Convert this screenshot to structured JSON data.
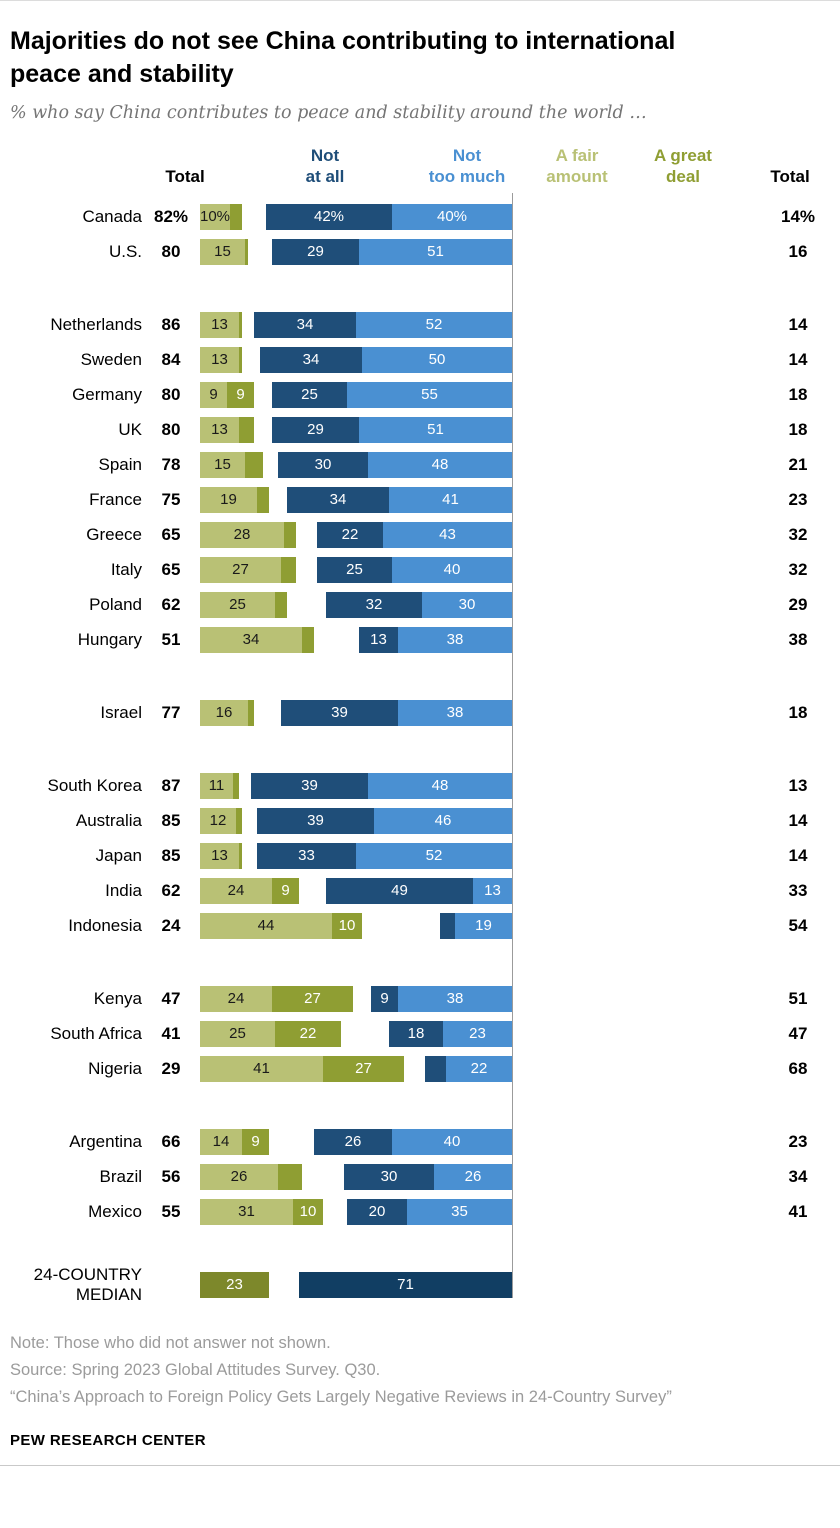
{
  "header": {
    "title": "Majorities do not see China contributing to international peace and stability",
    "subtitle": "% who say China contributes to peace and stability around the world …"
  },
  "chart_data": {
    "type": "diverging-stacked-bar",
    "legend": [
      "Not at all",
      "Not too much",
      "A fair amount",
      "A great deal"
    ],
    "columns": {
      "total_left": "Total",
      "not_at_all": "Not\nat all",
      "not_too_much": "Not\ntoo much",
      "fair_amount": "A fair\namount",
      "great_deal": "A great\ndeal",
      "total_right": "Total"
    },
    "colors": {
      "not_at_all": "#1f4e79",
      "not_too_much": "#4a90d2",
      "fair_amount": "#b9c175",
      "great_deal": "#8f9e33",
      "median_negative": "#113e63",
      "median_positive": "#7d882b",
      "center_line": "#9b9b9b"
    },
    "groups": [
      {
        "rows": [
          {
            "country": "Canada",
            "total_left": "82%",
            "na": {
              "v": 42,
              "t": "42%"
            },
            "nm": {
              "v": 40,
              "t": "40%"
            },
            "fa": {
              "v": 10,
              "t": "10%"
            },
            "gr": {
              "v": 4,
              "t": ""
            },
            "total_right": "14%"
          },
          {
            "country": "U.S.",
            "total_left": "80",
            "na": {
              "v": 29,
              "t": "29"
            },
            "nm": {
              "v": 51,
              "t": "51"
            },
            "fa": {
              "v": 15,
              "t": "15"
            },
            "gr": {
              "v": 1,
              "t": ""
            },
            "total_right": "16"
          }
        ]
      },
      {
        "rows": [
          {
            "country": "Netherlands",
            "total_left": "86",
            "na": {
              "v": 34,
              "t": "34"
            },
            "nm": {
              "v": 52,
              "t": "52"
            },
            "fa": {
              "v": 13,
              "t": "13"
            },
            "gr": {
              "v": 1,
              "t": ""
            },
            "total_right": "14"
          },
          {
            "country": "Sweden",
            "total_left": "84",
            "na": {
              "v": 34,
              "t": "34"
            },
            "nm": {
              "v": 50,
              "t": "50"
            },
            "fa": {
              "v": 13,
              "t": "13"
            },
            "gr": {
              "v": 1,
              "t": ""
            },
            "total_right": "14"
          },
          {
            "country": "Germany",
            "total_left": "80",
            "na": {
              "v": 25,
              "t": "25"
            },
            "nm": {
              "v": 55,
              "t": "55"
            },
            "fa": {
              "v": 9,
              "t": "9"
            },
            "gr": {
              "v": 9,
              "t": "9"
            },
            "total_right": "18"
          },
          {
            "country": "UK",
            "total_left": "80",
            "na": {
              "v": 29,
              "t": "29"
            },
            "nm": {
              "v": 51,
              "t": "51"
            },
            "fa": {
              "v": 13,
              "t": "13"
            },
            "gr": {
              "v": 5,
              "t": ""
            },
            "total_right": "18"
          },
          {
            "country": "Spain",
            "total_left": "78",
            "na": {
              "v": 30,
              "t": "30"
            },
            "nm": {
              "v": 48,
              "t": "48"
            },
            "fa": {
              "v": 15,
              "t": "15"
            },
            "gr": {
              "v": 6,
              "t": ""
            },
            "total_right": "21"
          },
          {
            "country": "France",
            "total_left": "75",
            "na": {
              "v": 34,
              "t": "34"
            },
            "nm": {
              "v": 41,
              "t": "41"
            },
            "fa": {
              "v": 19,
              "t": "19"
            },
            "gr": {
              "v": 4,
              "t": ""
            },
            "total_right": "23"
          },
          {
            "country": "Greece",
            "total_left": "65",
            "na": {
              "v": 22,
              "t": "22"
            },
            "nm": {
              "v": 43,
              "t": "43"
            },
            "fa": {
              "v": 28,
              "t": "28"
            },
            "gr": {
              "v": 4,
              "t": ""
            },
            "total_right": "32"
          },
          {
            "country": "Italy",
            "total_left": "65",
            "na": {
              "v": 25,
              "t": "25"
            },
            "nm": {
              "v": 40,
              "t": "40"
            },
            "fa": {
              "v": 27,
              "t": "27"
            },
            "gr": {
              "v": 5,
              "t": ""
            },
            "total_right": "32"
          },
          {
            "country": "Poland",
            "total_left": "62",
            "na": {
              "v": 32,
              "t": "32"
            },
            "nm": {
              "v": 30,
              "t": "30"
            },
            "fa": {
              "v": 25,
              "t": "25"
            },
            "gr": {
              "v": 4,
              "t": ""
            },
            "total_right": "29"
          },
          {
            "country": "Hungary",
            "total_left": "51",
            "na": {
              "v": 13,
              "t": "13"
            },
            "nm": {
              "v": 38,
              "t": "38"
            },
            "fa": {
              "v": 34,
              "t": "34"
            },
            "gr": {
              "v": 4,
              "t": ""
            },
            "total_right": "38"
          }
        ]
      },
      {
        "rows": [
          {
            "country": "Israel",
            "total_left": "77",
            "na": {
              "v": 39,
              "t": "39"
            },
            "nm": {
              "v": 38,
              "t": "38"
            },
            "fa": {
              "v": 16,
              "t": "16"
            },
            "gr": {
              "v": 2,
              "t": ""
            },
            "total_right": "18"
          }
        ]
      },
      {
        "rows": [
          {
            "country": "South Korea",
            "total_left": "87",
            "na": {
              "v": 39,
              "t": "39"
            },
            "nm": {
              "v": 48,
              "t": "48"
            },
            "fa": {
              "v": 11,
              "t": "11"
            },
            "gr": {
              "v": 2,
              "t": ""
            },
            "total_right": "13"
          },
          {
            "country": "Australia",
            "total_left": "85",
            "na": {
              "v": 39,
              "t": "39"
            },
            "nm": {
              "v": 46,
              "t": "46"
            },
            "fa": {
              "v": 12,
              "t": "12"
            },
            "gr": {
              "v": 2,
              "t": ""
            },
            "total_right": "14"
          },
          {
            "country": "Japan",
            "total_left": "85",
            "na": {
              "v": 33,
              "t": "33"
            },
            "nm": {
              "v": 52,
              "t": "52"
            },
            "fa": {
              "v": 13,
              "t": "13"
            },
            "gr": {
              "v": 1,
              "t": ""
            },
            "total_right": "14"
          },
          {
            "country": "India",
            "total_left": "62",
            "na": {
              "v": 49,
              "t": "49"
            },
            "nm": {
              "v": 13,
              "t": "13"
            },
            "fa": {
              "v": 24,
              "t": "24"
            },
            "gr": {
              "v": 9,
              "t": "9"
            },
            "total_right": "33"
          },
          {
            "country": "Indonesia",
            "total_left": "24",
            "na": {
              "v": 5,
              "t": ""
            },
            "nm": {
              "v": 19,
              "t": "19"
            },
            "fa": {
              "v": 44,
              "t": "44"
            },
            "gr": {
              "v": 10,
              "t": "10"
            },
            "total_right": "54"
          }
        ]
      },
      {
        "rows": [
          {
            "country": "Kenya",
            "total_left": "47",
            "na": {
              "v": 9,
              "t": "9"
            },
            "nm": {
              "v": 38,
              "t": "38"
            },
            "fa": {
              "v": 24,
              "t": "24"
            },
            "gr": {
              "v": 27,
              "t": "27"
            },
            "total_right": "51"
          },
          {
            "country": "South Africa",
            "total_left": "41",
            "na": {
              "v": 18,
              "t": "18"
            },
            "nm": {
              "v": 23,
              "t": "23"
            },
            "fa": {
              "v": 25,
              "t": "25"
            },
            "gr": {
              "v": 22,
              "t": "22"
            },
            "total_right": "47"
          },
          {
            "country": "Nigeria",
            "total_left": "29",
            "na": {
              "v": 7,
              "t": ""
            },
            "nm": {
              "v": 22,
              "t": "22"
            },
            "fa": {
              "v": 41,
              "t": "41"
            },
            "gr": {
              "v": 27,
              "t": "27"
            },
            "total_right": "68"
          }
        ]
      },
      {
        "rows": [
          {
            "country": "Argentina",
            "total_left": "66",
            "na": {
              "v": 26,
              "t": "26"
            },
            "nm": {
              "v": 40,
              "t": "40"
            },
            "fa": {
              "v": 14,
              "t": "14"
            },
            "gr": {
              "v": 9,
              "t": "9"
            },
            "total_right": "23"
          },
          {
            "country": "Brazil",
            "total_left": "56",
            "na": {
              "v": 30,
              "t": "30"
            },
            "nm": {
              "v": 26,
              "t": "26"
            },
            "fa": {
              "v": 26,
              "t": "26"
            },
            "gr": {
              "v": 8,
              "t": ""
            },
            "total_right": "34"
          },
          {
            "country": "Mexico",
            "total_left": "55",
            "na": {
              "v": 20,
              "t": "20"
            },
            "nm": {
              "v": 35,
              "t": "35"
            },
            "fa": {
              "v": 31,
              "t": "31"
            },
            "gr": {
              "v": 10,
              "t": "10"
            },
            "total_right": "41"
          }
        ]
      },
      {
        "rows": [
          {
            "country": "24-COUNTRY\nMEDIAN",
            "median": true,
            "total_left": "",
            "neg": {
              "v": 71,
              "t": "71"
            },
            "pos": {
              "v": 23,
              "t": "23"
            },
            "total_right": ""
          }
        ]
      }
    ]
  },
  "footer": {
    "note": "Note: Those who did not answer not shown.",
    "source": "Source: Spring 2023 Global Attitudes Survey. Q30.",
    "report": "“China’s Approach to Foreign Policy Gets Largely Negative Reviews in 24-Country Survey”",
    "brand": "PEW RESEARCH CENTER"
  }
}
